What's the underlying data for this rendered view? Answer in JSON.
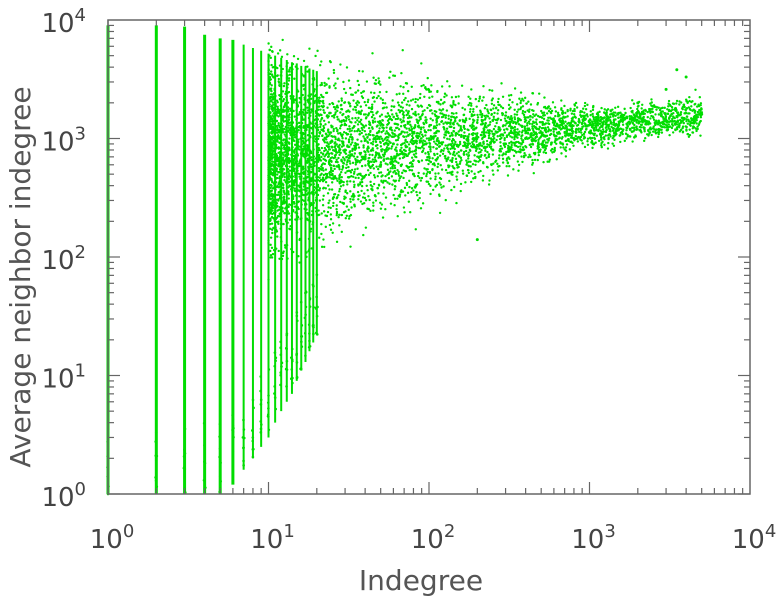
{
  "chart_data": {
    "type": "scatter",
    "title": "",
    "xlabel": "Indegree",
    "ylabel": "Average neighbor indegree",
    "xscale": "log",
    "yscale": "log",
    "xlim": [
      1,
      10000
    ],
    "ylim": [
      1,
      10000
    ],
    "grid": false,
    "legend": "none",
    "point_color": "#00dd00",
    "xticks": [
      {
        "base": "10",
        "exp": "0"
      },
      {
        "base": "10",
        "exp": "1"
      },
      {
        "base": "10",
        "exp": "2"
      },
      {
        "base": "10",
        "exp": "3"
      },
      {
        "base": "10",
        "exp": "4"
      }
    ],
    "yticks": [
      {
        "base": "10",
        "exp": "0"
      },
      {
        "base": "10",
        "exp": "1"
      },
      {
        "base": "10",
        "exp": "2"
      },
      {
        "base": "10",
        "exp": "3"
      },
      {
        "base": "10",
        "exp": "4"
      }
    ],
    "vertical_columns": [
      {
        "x": 1,
        "ymin": 1,
        "ymax": 9000
      },
      {
        "x": 2,
        "ymin": 1,
        "ymax": 9000
      },
      {
        "x": 3,
        "ymin": 1,
        "ymax": 8800
      },
      {
        "x": 4,
        "ymin": 1,
        "ymax": 7500
      },
      {
        "x": 5,
        "ymin": 1,
        "ymax": 7000
      },
      {
        "x": 6,
        "ymin": 1.2,
        "ymax": 6800
      },
      {
        "x": 7,
        "ymin": 1.6,
        "ymax": 6200
      },
      {
        "x": 8,
        "ymin": 2,
        "ymax": 5800
      },
      {
        "x": 9,
        "ymin": 2.5,
        "ymax": 5500
      },
      {
        "x": 10,
        "ymin": 3,
        "ymax": 5200
      },
      {
        "x": 11,
        "ymin": 4,
        "ymax": 5000
      },
      {
        "x": 12,
        "ymin": 5,
        "ymax": 4800
      },
      {
        "x": 13,
        "ymin": 6,
        "ymax": 4600
      },
      {
        "x": 14,
        "ymin": 7,
        "ymax": 4400
      },
      {
        "x": 15,
        "ymin": 9,
        "ymax": 4300
      },
      {
        "x": 16,
        "ymin": 11,
        "ymax": 4100
      },
      {
        "x": 17,
        "ymin": 13,
        "ymax": 4000
      },
      {
        "x": 18,
        "ymin": 16,
        "ymax": 3900
      },
      {
        "x": 19,
        "ymin": 19,
        "ymax": 3800
      },
      {
        "x": 20,
        "ymin": 22,
        "ymax": 3700
      }
    ],
    "sample_points": [
      {
        "x": 30,
        "y": 800
      },
      {
        "x": 40,
        "y": 700
      },
      {
        "x": 50,
        "y": 600
      },
      {
        "x": 60,
        "y": 900
      },
      {
        "x": 80,
        "y": 500
      },
      {
        "x": 100,
        "y": 700
      },
      {
        "x": 150,
        "y": 600
      },
      {
        "x": 200,
        "y": 140
      },
      {
        "x": 250,
        "y": 800
      },
      {
        "x": 300,
        "y": 900
      },
      {
        "x": 400,
        "y": 1000
      },
      {
        "x": 600,
        "y": 1200
      },
      {
        "x": 800,
        "y": 1000
      },
      {
        "x": 1000,
        "y": 1300
      },
      {
        "x": 1500,
        "y": 1600
      },
      {
        "x": 2000,
        "y": 2000
      },
      {
        "x": 3000,
        "y": 2600
      },
      {
        "x": 3500,
        "y": 3800
      },
      {
        "x": 4000,
        "y": 3300
      },
      {
        "x": 5000,
        "y": 1600
      }
    ]
  }
}
